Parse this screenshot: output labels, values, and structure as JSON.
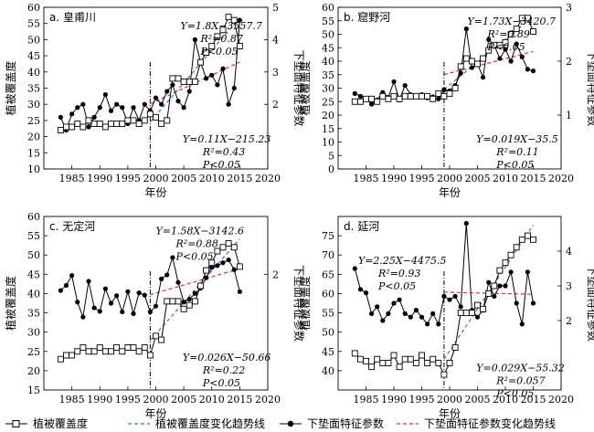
{
  "chart_data": [
    {
      "type": "line",
      "panel_label": "a. 皇甫川",
      "xlabel": "年份",
      "ylabel_left": "植被覆盖度",
      "ylabel_right": "下垫面特征参数",
      "xlim": [
        1980,
        2020
      ],
      "ylim_left": [
        10,
        60
      ],
      "ylim_right": [
        0,
        5
      ],
      "xticks": [
        1985,
        1990,
        1995,
        2000,
        2005,
        2010,
        2015,
        2020
      ],
      "yticks_left": [
        10,
        15,
        20,
        25,
        30,
        35,
        40,
        45,
        50,
        55,
        60
      ],
      "yticks_right": [
        2,
        3,
        4,
        5
      ],
      "breakpoint_year": 1999,
      "eq_veg": [
        "Y=1.8X−3557.7",
        "R²=0.87",
        "P<0.05"
      ],
      "eq_param": [
        "Y=0.11X−215.23",
        "R²=0.43",
        "P<0.05"
      ],
      "trend_veg_x": [
        1999,
        2015
      ],
      "trend_param_x": [
        1999,
        2015
      ],
      "x": [
        1983,
        1984,
        1985,
        1986,
        1987,
        1988,
        1989,
        1990,
        1991,
        1992,
        1993,
        1994,
        1995,
        1996,
        1997,
        1998,
        1999,
        2000,
        2001,
        2002,
        2003,
        2004,
        2005,
        2006,
        2007,
        2008,
        2009,
        2010,
        2011,
        2012,
        2013,
        2014,
        2015
      ],
      "series": [
        {
          "name": "植被覆盖度",
          "axis": "left",
          "values": [
            22,
            23,
            23,
            24,
            23,
            25,
            24,
            24,
            23,
            24,
            24,
            24,
            25,
            25,
            24,
            25,
            27,
            26,
            24,
            25,
            38,
            38,
            37,
            37,
            37,
            43,
            46,
            48,
            51,
            53,
            57,
            56,
            48
          ]
        },
        {
          "name": "下垫面特征参数",
          "axis": "right",
          "values": [
            1.6,
            1.2,
            1.7,
            1.9,
            2.0,
            1.3,
            1.6,
            1.9,
            2.3,
            1.8,
            2.0,
            1.9,
            1.4,
            1.9,
            1.5,
            2.0,
            1.8,
            2.2,
            2.0,
            2.4,
            2.6,
            2.1,
            1.9,
            2.4,
            4.0,
            3.3,
            2.8,
            2.9,
            2.6,
            3.1,
            2.0,
            2.5,
            4.6
          ]
        }
      ],
      "colors": {
        "veg": "#000000",
        "veg_trend": "#3b6fd8",
        "param": "#000000",
        "param_trend": "#e03030"
      }
    },
    {
      "type": "line",
      "panel_label": "b. 窟野河",
      "xlabel": "年份",
      "ylabel_left": "植被覆盖度",
      "ylabel_right": "下垫面特征参数",
      "xlim": [
        1980,
        2020
      ],
      "ylim_left": [
        0,
        60
      ],
      "ylim_right": [
        0,
        3
      ],
      "xticks": [
        1985,
        1990,
        1995,
        2000,
        2005,
        2010,
        2015,
        2020
      ],
      "yticks_left": [
        0,
        5,
        10,
        15,
        20,
        25,
        30,
        35,
        40,
        45,
        50,
        55,
        60
      ],
      "yticks_right": [
        1,
        2,
        3
      ],
      "breakpoint_year": 1999,
      "eq_veg": [
        "Y=1.73X−3420.7",
        "R²=0.89",
        "P<0.05"
      ],
      "eq_param": [
        "Y=0.019X−35.5",
        "R²=0.11",
        "P<0.05"
      ],
      "trend_veg_x": [
        1999,
        2015
      ],
      "trend_param_x": [
        1999,
        2015
      ],
      "x": [
        1983,
        1984,
        1985,
        1986,
        1987,
        1988,
        1989,
        1990,
        1991,
        1992,
        1993,
        1994,
        1995,
        1996,
        1997,
        1998,
        1999,
        2000,
        2001,
        2002,
        2003,
        2004,
        2005,
        2006,
        2007,
        2008,
        2009,
        2010,
        2011,
        2012,
        2013,
        2014,
        2015
      ],
      "series": [
        {
          "name": "植被覆盖度",
          "axis": "left",
          "values": [
            25,
            25,
            26,
            26,
            25,
            27,
            26,
            27,
            26,
            27,
            27,
            27,
            27,
            27,
            26,
            28,
            27,
            28,
            30,
            38,
            41,
            40,
            39,
            41,
            44,
            46,
            46,
            47,
            50,
            52,
            56,
            56,
            51
          ]
        },
        {
          "name": "下垫面特征参数",
          "axis": "right",
          "values": [
            1.4,
            1.35,
            1.3,
            1.2,
            1.28,
            1.42,
            1.33,
            1.62,
            1.28,
            1.55,
            1.38,
            1.35,
            1.38,
            1.32,
            1.34,
            1.3,
            1.47,
            1.45,
            1.55,
            1.78,
            2.6,
            1.88,
            1.95,
            1.7,
            2.4,
            2.3,
            2.05,
            2.22,
            2.0,
            2.32,
            2.08,
            1.85,
            1.82
          ]
        }
      ],
      "colors": {
        "veg": "#000000",
        "veg_trend": "#3b6fd8",
        "param": "#000000",
        "param_trend": "#e03030"
      }
    },
    {
      "type": "line",
      "panel_label": "c. 无定河",
      "xlabel": "年份",
      "ylabel_left": "植被覆盖度",
      "ylabel_right": "下垫面特征参数",
      "xlim": [
        1980,
        2020
      ],
      "ylim_left": [
        15,
        60
      ],
      "ylim_right": [
        0,
        3
      ],
      "xticks": [
        1985,
        1990,
        1995,
        2000,
        2005,
        2010,
        2015,
        2020
      ],
      "yticks_left": [
        15,
        20,
        25,
        30,
        35,
        40,
        45,
        50,
        55,
        60
      ],
      "yticks_right": [
        2
      ],
      "breakpoint_year": 1999,
      "eq_veg": [
        "Y=1.58X−3142.6",
        "R²=0.88",
        "P<0.05"
      ],
      "eq_param": [
        "Y=0.026X−50.66",
        "R²=0.22",
        "P<0.05"
      ],
      "trend_veg_x": [
        1999,
        2015
      ],
      "trend_param_x": [
        1999,
        2015
      ],
      "x": [
        1983,
        1984,
        1985,
        1986,
        1987,
        1988,
        1989,
        1990,
        1991,
        1992,
        1993,
        1994,
        1995,
        1996,
        1997,
        1998,
        1999,
        2000,
        2001,
        2002,
        2003,
        2004,
        2005,
        2006,
        2007,
        2008,
        2009,
        2010,
        2011,
        2012,
        2013,
        2014,
        2015
      ],
      "series": [
        {
          "name": "植被覆盖度",
          "axis": "left",
          "values": [
            23,
            24,
            24,
            25,
            26,
            25,
            25,
            26,
            25,
            25,
            26,
            25,
            26,
            26,
            25,
            26,
            24,
            29,
            28,
            38,
            38,
            38,
            36,
            37,
            38,
            42,
            46,
            48,
            51,
            52,
            53,
            52,
            47
          ]
        },
        {
          "name": "下垫面特征参数",
          "axis": "right",
          "values": [
            1.72,
            1.81,
            1.98,
            1.52,
            1.26,
            1.88,
            1.42,
            1.36,
            1.75,
            1.5,
            1.63,
            1.35,
            1.7,
            1.32,
            1.68,
            1.64,
            1.35,
            1.45,
            1.92,
            1.99,
            2.29,
            1.86,
            1.52,
            1.57,
            1.67,
            1.76,
            1.94,
            2.12,
            2.15,
            2.2,
            2.25,
            2.08,
            1.7
          ]
        }
      ],
      "colors": {
        "veg": "#000000",
        "veg_trend": "#3b6fd8",
        "param": "#000000",
        "param_trend": "#e03030"
      }
    },
    {
      "type": "line",
      "panel_label": "d. 延河",
      "xlabel": "年份",
      "ylabel_left": "植被覆盖度",
      "ylabel_right": "下垫面特征参数",
      "xlim": [
        1980,
        2020
      ],
      "ylim_left": [
        35,
        80
      ],
      "ylim_right": [
        0,
        5
      ],
      "xticks": [
        1985,
        1990,
        1995,
        2000,
        2005,
        2010,
        2015,
        2020
      ],
      "yticks_left": [
        40,
        45,
        50,
        55,
        60,
        65,
        70,
        75
      ],
      "yticks_right": [
        2,
        3,
        4
      ],
      "breakpoint_year": 1999,
      "eq_veg": [
        "Y=2.25X−4475.5",
        "R²=0.93",
        "P<0.05"
      ],
      "eq_param": [
        "Y=0.029X−55.32",
        "R²=0.057",
        "P<0.05"
      ],
      "trend_veg_x": [
        1999,
        2015
      ],
      "trend_param_x": [
        1999,
        2015
      ],
      "x": [
        1983,
        1984,
        1985,
        1986,
        1987,
        1988,
        1989,
        1990,
        1991,
        1992,
        1993,
        1994,
        1995,
        1996,
        1997,
        1998,
        1999,
        2000,
        2001,
        2002,
        2003,
        2004,
        2005,
        2006,
        2007,
        2008,
        2009,
        2010,
        2011,
        2012,
        2013,
        2014,
        2015
      ],
      "series": [
        {
          "name": "植被覆盖度",
          "axis": "left",
          "values": [
            44.5,
            43,
            42.5,
            41,
            43,
            42,
            42,
            44,
            41,
            43,
            43,
            42,
            44,
            42,
            43,
            42,
            39,
            42,
            46,
            55,
            55,
            55,
            57,
            56,
            60,
            62,
            66,
            68,
            70,
            72,
            74,
            75,
            74
          ]
        },
        {
          "name": "下垫面特征参数",
          "axis": "right",
          "values": [
            3.5,
            2.9,
            2.8,
            2.2,
            2.4,
            2.0,
            2.2,
            2.5,
            2.6,
            2.2,
            2.1,
            2.3,
            2.1,
            1.9,
            2.2,
            1.9,
            2.7,
            2.6,
            2.7,
            2.4,
            4.8,
            2.3,
            2.1,
            2.3,
            3.1,
            2.7,
            3.0,
            3.0,
            3.4,
            2.5,
            1.9,
            3.4,
            2.5
          ]
        }
      ],
      "colors": {
        "veg": "#000000",
        "veg_trend": "#3b6fd8",
        "param": "#000000",
        "param_trend": "#e03030"
      }
    }
  ],
  "legend": {
    "items": [
      {
        "label": "植被覆盖度",
        "style": "square-line"
      },
      {
        "label": "植被覆盖度变化趋势线",
        "style": "blue-dash"
      },
      {
        "label": "下垫面特征参数",
        "style": "dot-line"
      },
      {
        "label": "下垫面特征参数变化趋势线",
        "style": "red-dash"
      }
    ]
  }
}
